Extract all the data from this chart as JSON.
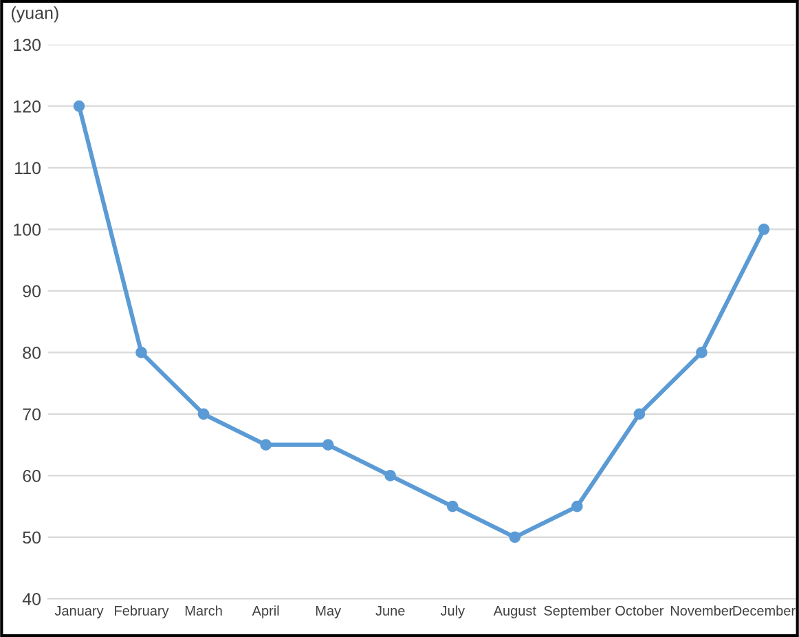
{
  "chart_data": {
    "type": "line",
    "ylabel": "(yuan)",
    "categories": [
      "January",
      "February",
      "March",
      "April",
      "May",
      "June",
      "July",
      "August",
      "September",
      "October",
      "November",
      "December"
    ],
    "series": [
      {
        "color": "#5b9bd5",
        "values": [
          120,
          80,
          70,
          65,
          65,
          60,
          55,
          50,
          55,
          70,
          80,
          100
        ]
      }
    ],
    "ylim": [
      40,
      130
    ],
    "yticks": [
      40,
      50,
      60,
      70,
      80,
      90,
      100,
      110,
      120,
      130
    ],
    "grid": "y",
    "marker": "circle",
    "line_style": "solid",
    "legend": false
  }
}
